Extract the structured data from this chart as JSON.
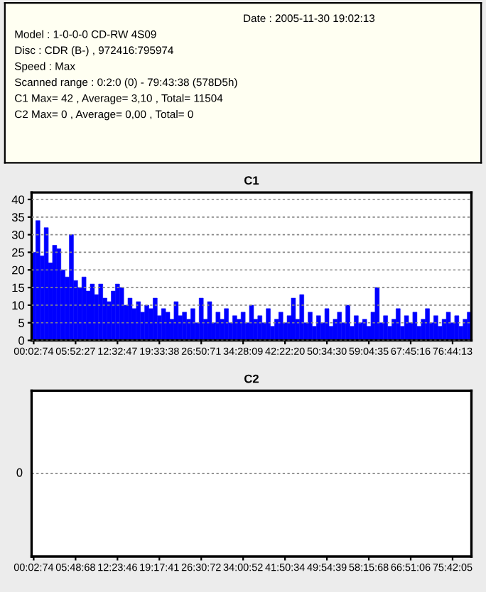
{
  "chart_data": [
    {
      "type": "other",
      "annotations": [
        "Date : 2005-11-30 19:02:13",
        "Model : 1-0-0-0 CD-RW 4S09",
        "Disc : CDR (B-) , 972416:795974",
        "Speed : Max",
        "Scanned range : 0:2:0 (0) - 79:43:38 (578D5h)",
        "C1 Max= 42 , Average= 3,10 , Total= 11504",
        "C2 Max= 0 , Average= 0,00 , Total= 0"
      ]
    },
    {
      "type": "bar",
      "title": "C1",
      "color": "#0000ff",
      "grid": "y",
      "ylim": [
        0,
        42
      ],
      "yticks": [
        0,
        5,
        10,
        15,
        20,
        25,
        30,
        35,
        40
      ],
      "categories": [
        "00:02:74",
        null,
        null,
        null,
        null,
        null,
        null,
        null,
        null,
        null,
        "05:52:27",
        null,
        null,
        null,
        null,
        null,
        null,
        null,
        null,
        null,
        "12:32:47",
        null,
        null,
        null,
        null,
        null,
        null,
        null,
        null,
        null,
        "19:33:38",
        null,
        null,
        null,
        null,
        null,
        null,
        null,
        null,
        null,
        "26:50:71",
        null,
        null,
        null,
        null,
        null,
        null,
        null,
        null,
        null,
        "34:28:09",
        null,
        null,
        null,
        null,
        null,
        null,
        null,
        null,
        null,
        "42:22:20",
        null,
        null,
        null,
        null,
        null,
        null,
        null,
        null,
        null,
        "50:34:30",
        null,
        null,
        null,
        null,
        null,
        null,
        null,
        null,
        null,
        "59:04:35",
        null,
        null,
        null,
        null,
        null,
        null,
        null,
        null,
        null,
        "67:45:16",
        null,
        null,
        null,
        null,
        null,
        null,
        null,
        null,
        null,
        "76:44:13",
        null,
        null,
        null,
        null
      ],
      "values": [
        25,
        34,
        24,
        32,
        22,
        27,
        26,
        20,
        18,
        30,
        17,
        15,
        18,
        14,
        16,
        13,
        16,
        12,
        11,
        14,
        16,
        15,
        10,
        12,
        9,
        11,
        8,
        10,
        9,
        12,
        7,
        9,
        8,
        6,
        11,
        7,
        8,
        6,
        9,
        5,
        12,
        6,
        11,
        5,
        8,
        6,
        9,
        5,
        7,
        6,
        8,
        5,
        10,
        6,
        7,
        5,
        9,
        4,
        6,
        8,
        5,
        7,
        12,
        6,
        13,
        5,
        8,
        4,
        7,
        5,
        9,
        4,
        6,
        8,
        5,
        10,
        4,
        7,
        5,
        6,
        4,
        8,
        15,
        5,
        7,
        4,
        6,
        9,
        4,
        7,
        5,
        8,
        4,
        6,
        9,
        5,
        7,
        4,
        6,
        8,
        5,
        7,
        4,
        6,
        8
      ]
    },
    {
      "type": "other",
      "title": "C2",
      "annotations": [
        "0"
      ],
      "categories": [
        "00:02:74",
        null,
        null,
        null,
        null,
        null,
        null,
        null,
        null,
        null,
        "05:48:68",
        null,
        null,
        null,
        null,
        null,
        null,
        null,
        null,
        null,
        "12:23:46",
        null,
        null,
        null,
        null,
        null,
        null,
        null,
        null,
        null,
        "19:17:41",
        null,
        null,
        null,
        null,
        null,
        null,
        null,
        null,
        null,
        "26:30:72",
        null,
        null,
        null,
        null,
        null,
        null,
        null,
        null,
        null,
        "34:00:52",
        null,
        null,
        null,
        null,
        null,
        null,
        null,
        null,
        null,
        "41:50:34",
        null,
        null,
        null,
        null,
        null,
        null,
        null,
        null,
        null,
        "49:54:39",
        null,
        null,
        null,
        null,
        null,
        null,
        null,
        null,
        null,
        "58:15:68",
        null,
        null,
        null,
        null,
        null,
        null,
        null,
        null,
        null,
        "66:51:06",
        null,
        null,
        null,
        null,
        null,
        null,
        null,
        null,
        null,
        "75:42:05",
        null,
        null,
        null,
        null
      ]
    }
  ]
}
